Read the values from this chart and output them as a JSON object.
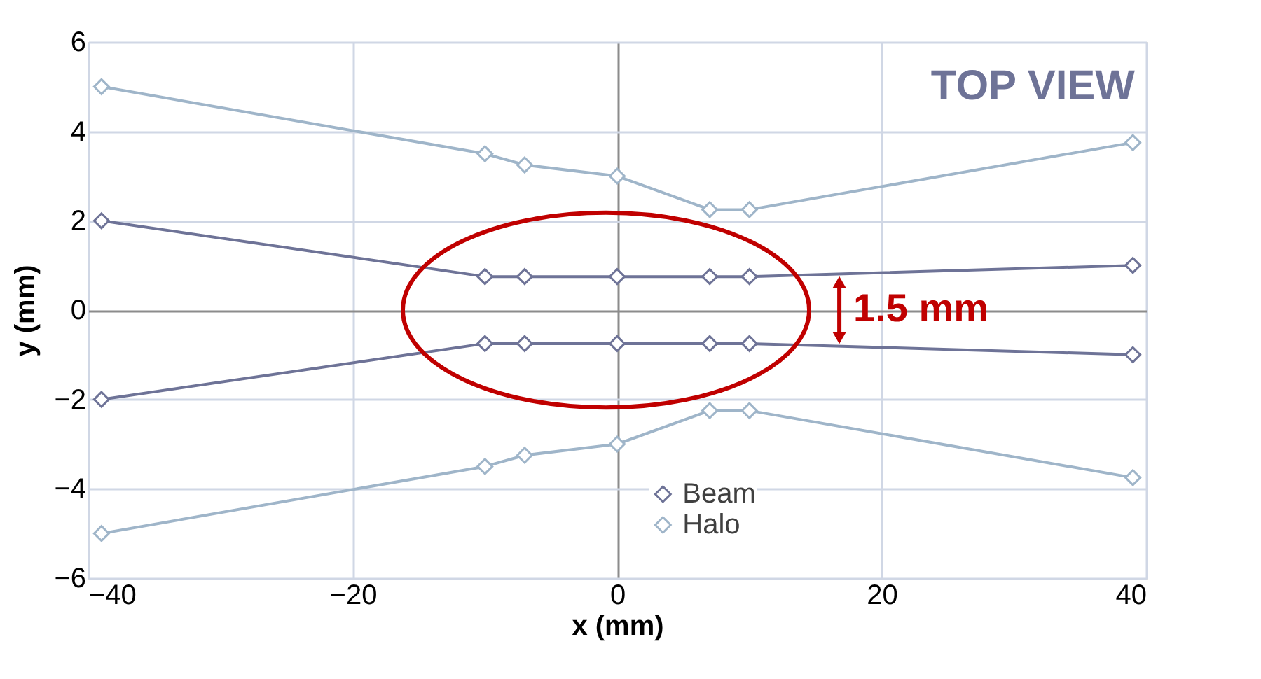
{
  "chart_data": {
    "type": "line",
    "xlabel": "x (mm)",
    "ylabel": "y (mm)",
    "xlim": [
      -40,
      40
    ],
    "xticks": [
      -40,
      -20,
      0,
      20,
      40
    ],
    "ylim": [
      -6,
      6
    ],
    "yticks": [
      -6,
      -4,
      -2,
      0,
      2,
      4,
      6
    ],
    "grid": true,
    "legend": "bottom",
    "marker": "diamond",
    "line_style": "solid",
    "series": [
      {
        "name": "Beam",
        "color": "#6e7397",
        "x": [
          -39,
          -10,
          -7,
          0,
          7,
          10,
          39
        ],
        "values": [
          2,
          0.75,
          0.75,
          0.75,
          0.75,
          0.75,
          1
        ]
      },
      {
        "color": "#6e7397",
        "x": [
          -39,
          -10,
          -7,
          0,
          7,
          10,
          39
        ],
        "values": [
          -2,
          -0.75,
          -0.75,
          -0.75,
          -0.75,
          -0.75,
          -1
        ]
      },
      {
        "name": "Halo",
        "color": "#9fb5c9",
        "x": [
          -39,
          -10,
          -7,
          0,
          7,
          10,
          39
        ],
        "values": [
          5,
          3.5,
          3.25,
          3,
          2.25,
          2.25,
          3.75
        ]
      },
      {
        "color": "#9fb5c9",
        "x": [
          -39,
          -10,
          -7,
          0,
          7,
          10,
          39
        ],
        "values": [
          -5,
          -3.5,
          -3.25,
          -3,
          -2.25,
          -2.25,
          -3.75
        ]
      }
    ],
    "annotations": [
      "TOP VIEW",
      "1.5 mm"
    ]
  }
}
